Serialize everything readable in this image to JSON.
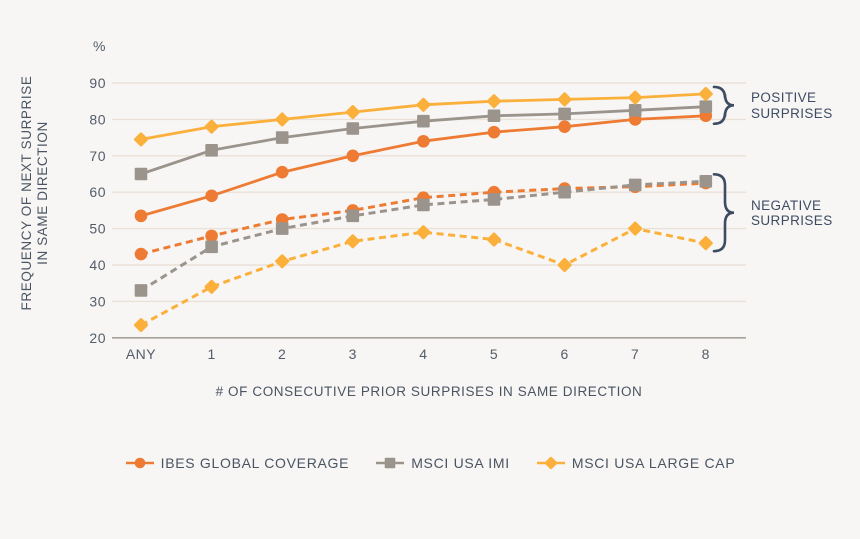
{
  "chart_data": {
    "type": "line",
    "unit_label": "%",
    "xlabel": "# OF CONSECUTIVE PRIOR SURPRISES IN SAME DIRECTION",
    "ylabel_lines": [
      "FREQUENCY OF NEXT SURPRISE",
      "IN SAME DIRECTION"
    ],
    "categories": [
      "ANY",
      "1",
      "2",
      "3",
      "4",
      "5",
      "6",
      "7",
      "8"
    ],
    "ylim": [
      20,
      90
    ],
    "yticks": [
      90,
      80,
      70,
      60,
      50,
      40,
      30,
      20
    ],
    "grid": true,
    "legend_position": "bottom",
    "series": [
      {
        "name": "MSCI USA LARGE CAP",
        "group": "negative",
        "line_style": "dashed",
        "marker": "diamond",
        "color": "#fbb03c",
        "values": [
          23.5,
          34,
          41,
          46.5,
          49,
          47,
          40,
          50,
          46
        ]
      },
      {
        "name": "IBES GLOBAL COVERAGE",
        "group": "negative",
        "line_style": "dashed",
        "marker": "circle",
        "color": "#ee7b33",
        "values": [
          43,
          48,
          52.5,
          55,
          58.5,
          60,
          61,
          61.5,
          62.5
        ]
      },
      {
        "name": "MSCI USA IMI",
        "group": "negative",
        "line_style": "dashed",
        "marker": "square",
        "color": "#9b948d",
        "values": [
          33,
          45,
          50,
          53.5,
          56.5,
          58,
          60,
          62,
          63
        ]
      },
      {
        "name": "IBES GLOBAL COVERAGE",
        "group": "positive",
        "line_style": "solid",
        "marker": "circle",
        "color": "#ee7b33",
        "values": [
          53.5,
          59,
          65.5,
          70,
          74,
          76.5,
          78,
          80,
          81
        ]
      },
      {
        "name": "MSCI USA IMI",
        "group": "positive",
        "line_style": "solid",
        "marker": "square",
        "color": "#9b948d",
        "values": [
          65,
          71.5,
          75,
          77.5,
          79.5,
          81,
          81.5,
          82.5,
          83.5
        ]
      },
      {
        "name": "MSCI USA LARGE CAP",
        "group": "positive",
        "line_style": "solid",
        "marker": "diamond",
        "color": "#fbb03c",
        "values": [
          74.5,
          78,
          80,
          82,
          84,
          85,
          85.5,
          86,
          87
        ]
      }
    ],
    "annotations": [
      {
        "group": "positive",
        "lines": [
          "POSITIVE",
          "SURPRISES"
        ]
      },
      {
        "group": "negative",
        "lines": [
          "NEGATIVE",
          "SURPRISES"
        ]
      }
    ],
    "legend": [
      {
        "label": "IBES GLOBAL COVERAGE",
        "marker": "circle",
        "color": "#ee7b33"
      },
      {
        "label": "MSCI USA IMI",
        "marker": "square",
        "color": "#9b948d"
      },
      {
        "label": "MSCI USA LARGE CAP",
        "marker": "diamond",
        "color": "#fbb03c"
      }
    ],
    "colors": {
      "background": "#f7f6f4",
      "gridline": "#eae1d8",
      "axis_line": "#a6a19a",
      "text": "#4a5462",
      "brace": "#3e4c63"
    }
  }
}
